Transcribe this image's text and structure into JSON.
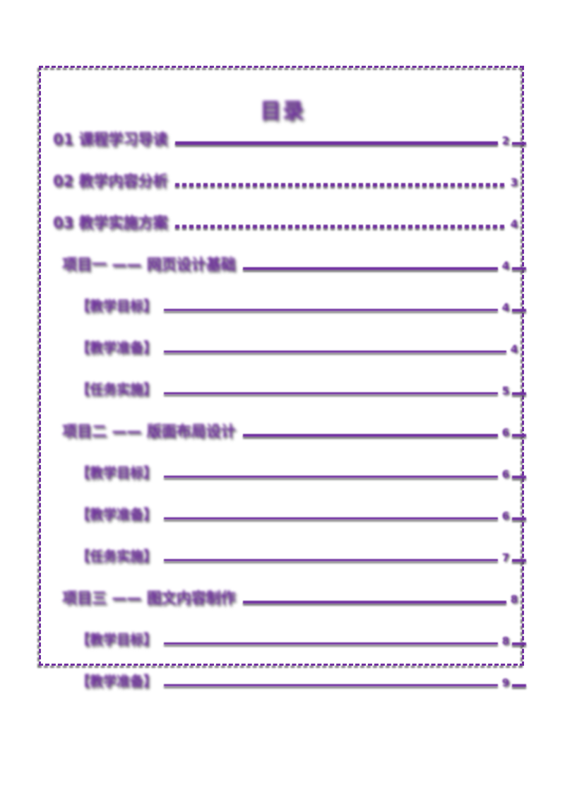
{
  "page": {
    "background": "#ffffff"
  },
  "colors": {
    "accent": "#7030a0",
    "shadow_gray": "#595959"
  },
  "title": {
    "text": "目录"
  },
  "toc": {
    "rows": [
      {
        "label": "01 课程学习导读",
        "page": "2",
        "level": 0,
        "leader": "solid",
        "stub": true
      },
      {
        "label": "02 教学内容分析",
        "page": "3",
        "level": 0,
        "leader": "dotted",
        "stub": false
      },
      {
        "label": "03 教学实施方案",
        "page": "4",
        "level": 0,
        "leader": "dotted",
        "stub": false
      },
      {
        "label": "项目一 —— 网页设计基础",
        "page": "4",
        "level": 1,
        "leader": "solid",
        "stub": true
      },
      {
        "label": "【教学目标】",
        "page": "4",
        "level": 2,
        "leader": "solid",
        "stub": true
      },
      {
        "label": "【教学准备】",
        "page": "4",
        "level": 2,
        "leader": "solid",
        "stub": false
      },
      {
        "label": "【任务实施】",
        "page": "5",
        "level": 2,
        "leader": "solid",
        "stub": true
      },
      {
        "label": "项目二 —— 版面布局设计",
        "page": "6",
        "level": 1,
        "leader": "solid",
        "stub": true
      },
      {
        "label": "【教学目标】",
        "page": "6",
        "level": 2,
        "leader": "solid",
        "stub": true
      },
      {
        "label": "【教学准备】",
        "page": "6",
        "level": 2,
        "leader": "solid",
        "stub": true
      },
      {
        "label": "【任务实施】",
        "page": "7",
        "level": 2,
        "leader": "solid",
        "stub": true
      },
      {
        "label": "项目三 —— 图文内容制作",
        "page": "8",
        "level": 1,
        "leader": "solid",
        "stub": false
      },
      {
        "label": "【教学目标】",
        "page": "8",
        "level": 2,
        "leader": "solid",
        "stub": true
      },
      {
        "label": "【教学准备】",
        "page": "9",
        "level": 2,
        "leader": "solid",
        "stub": true
      }
    ]
  }
}
